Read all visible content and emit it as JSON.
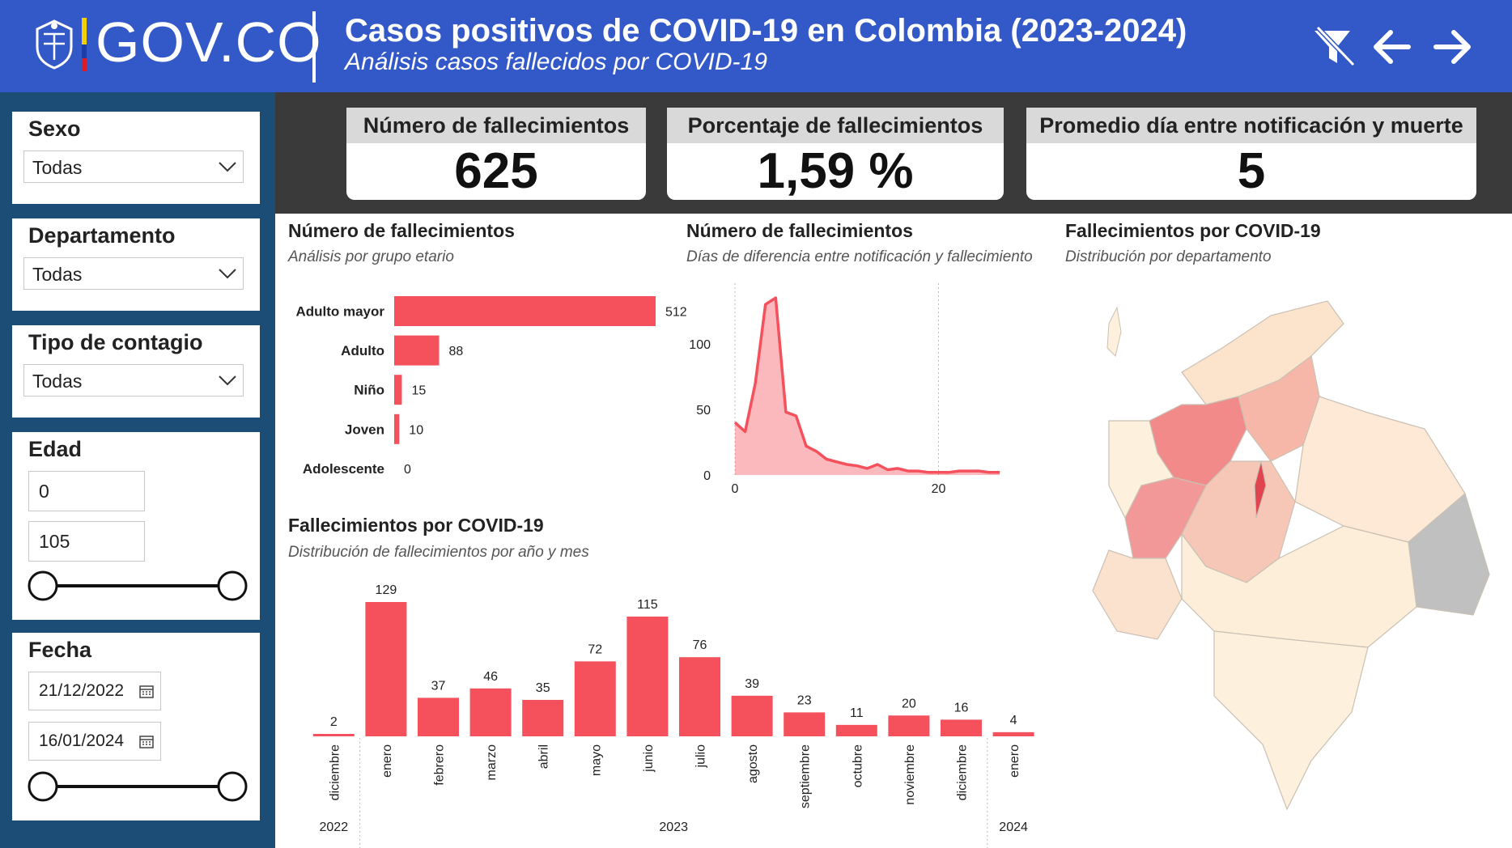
{
  "header": {
    "brand": "GOV.CO",
    "title": "Casos positivos de COVID-19 en Colombia (2023-2024)",
    "subtitle": "Análisis casos fallecidos por COVID-19",
    "icons": [
      "clear-filters-icon",
      "back-arrow-icon",
      "forward-arrow-icon"
    ],
    "flag_colors": [
      "#f5d000",
      "#1a3da8",
      "#d81e2c"
    ]
  },
  "filters": {
    "sexo": {
      "title": "Sexo",
      "value": "Todas"
    },
    "departamento": {
      "title": "Departamento",
      "value": "Todas"
    },
    "tipo_contagio": {
      "title": "Tipo de contagio",
      "value": "Todas"
    },
    "edad": {
      "title": "Edad",
      "min": "0",
      "max": "105"
    },
    "fecha": {
      "title": "Fecha",
      "start": "21/12/2022",
      "end": "16/01/2024"
    }
  },
  "kpis": [
    {
      "label": "Número de fallecimientos",
      "value": "625"
    },
    {
      "label": "Porcentaje de fallecimientos",
      "value": "1,59 %"
    },
    {
      "label": "Promedio día entre notificación y muerte",
      "value": "5"
    }
  ],
  "visuals": {
    "age": {
      "title": "Número de fallecimientos",
      "subtitle": "Análisis por grupo etario"
    },
    "days": {
      "title": "Número de fallecimientos",
      "subtitle": "Días de diferencia entre notificación y fallecimiento"
    },
    "map": {
      "title": "Fallecimientos por COVID-19",
      "subtitle": "Distribución por departamento"
    },
    "monthly": {
      "title": "Fallecimientos por COVID-19",
      "subtitle": "Distribución de fallecimientos por año y mes"
    }
  },
  "colors": {
    "accent": "#f4515c",
    "header": "#3358c8",
    "sidebar": "#1c4d77",
    "kpi_band": "#3a3a3a"
  },
  "chart_data": [
    {
      "type": "bar",
      "orientation": "horizontal",
      "categories": [
        "Adulto mayor",
        "Adulto",
        "Niño",
        "Joven",
        "Adolescente"
      ],
      "values": [
        512,
        88,
        15,
        10,
        0
      ]
    },
    {
      "type": "area",
      "x": [
        0,
        1,
        2,
        3,
        4,
        5,
        6,
        7,
        8,
        9,
        10,
        11,
        12,
        13,
        14,
        15,
        16,
        17,
        18,
        19,
        20,
        21,
        22,
        23,
        24,
        25,
        26
      ],
      "y": [
        40,
        33,
        70,
        130,
        135,
        48,
        45,
        22,
        18,
        12,
        10,
        8,
        7,
        5,
        8,
        4,
        5,
        3,
        3,
        2,
        2,
        2,
        3,
        3,
        3,
        2,
        2
      ],
      "xticks": [
        0,
        20
      ],
      "yticks": [
        0,
        50,
        100
      ],
      "xlim": [
        0,
        26
      ],
      "ylim": [
        0,
        140
      ]
    },
    {
      "type": "bar",
      "categories": [
        "diciembre",
        "enero",
        "febrero",
        "marzo",
        "abril",
        "mayo",
        "junio",
        "julio",
        "agosto",
        "septiembre",
        "octubre",
        "noviembre",
        "diciembre",
        "enero"
      ],
      "years": [
        {
          "label": "2022",
          "span": 1
        },
        {
          "label": "2023",
          "span": 12
        },
        {
          "label": "2024",
          "span": 1
        }
      ],
      "values": [
        2,
        129,
        37,
        46,
        35,
        72,
        115,
        76,
        39,
        23,
        11,
        20,
        16,
        4
      ],
      "ylim": [
        0,
        140
      ]
    }
  ]
}
